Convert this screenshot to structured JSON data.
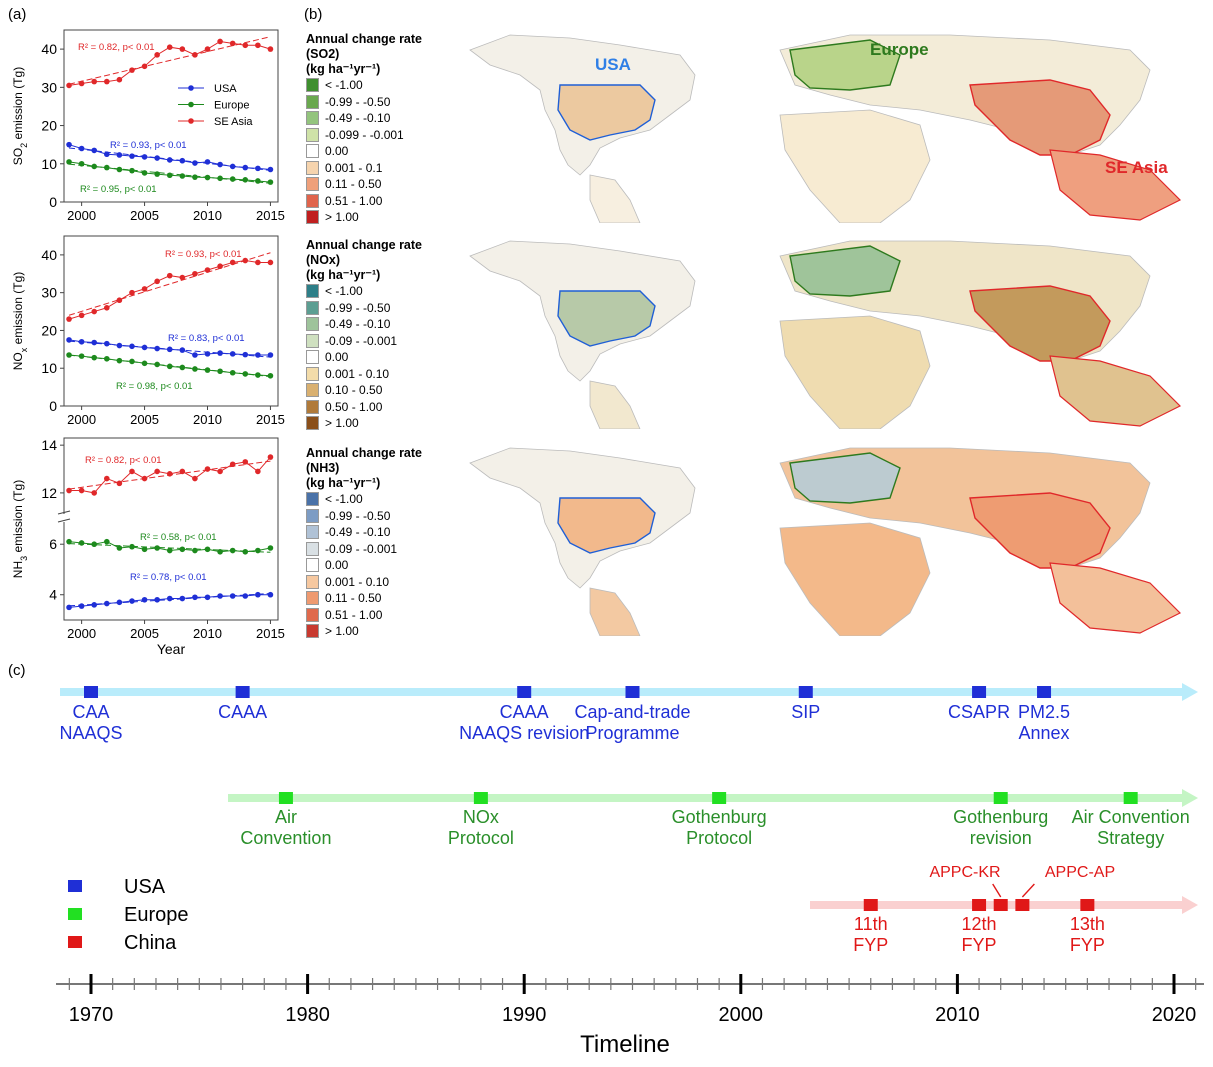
{
  "panel_labels": {
    "a": "(a)",
    "b": "(b)",
    "c": "(c)"
  },
  "colors": {
    "usa": "#1f2fd6",
    "europe": "#1d8a1d",
    "seasia": "#e0282a"
  },
  "chart_data": [
    {
      "type": "line",
      "id": "so2",
      "ylabel": "SO2 emission (Tg)",
      "xlabel": "",
      "x": [
        1999,
        2000,
        2001,
        2002,
        2003,
        2004,
        2005,
        2006,
        2007,
        2008,
        2009,
        2010,
        2011,
        2012,
        2013,
        2014,
        2015
      ],
      "xticks": [
        2000,
        2005,
        2010,
        2015
      ],
      "ylim": [
        0,
        45
      ],
      "yticks": [
        0,
        10,
        20,
        30,
        40
      ],
      "series": [
        {
          "name": "USA",
          "values": [
            15,
            14,
            13.5,
            12.5,
            12.3,
            12,
            11.8,
            11.5,
            11,
            10.8,
            10.2,
            10.5,
            9.8,
            9.3,
            9,
            8.8,
            8.5
          ]
        },
        {
          "name": "Europe",
          "values": [
            10.5,
            10,
            9.3,
            9,
            8.5,
            8.2,
            7.6,
            7.3,
            7,
            6.8,
            6.5,
            6.4,
            6.2,
            6,
            5.8,
            5.5,
            5.2
          ]
        },
        {
          "name": "SE Asia",
          "values": [
            30.5,
            31,
            31.5,
            31.5,
            32,
            34.5,
            35.5,
            38.5,
            40.5,
            40,
            38.5,
            40,
            42,
            41.5,
            41,
            41,
            40
          ]
        }
      ],
      "annotations": [
        {
          "text": "R² = 0.82, p< 0.01",
          "series": "SE Asia"
        },
        {
          "text": "R² = 0.93, p< 0.01",
          "series": "USA"
        },
        {
          "text": "R² = 0.95, p< 0.01",
          "series": "Europe"
        }
      ],
      "legend": [
        "USA",
        "Europe",
        "SE Asia"
      ]
    },
    {
      "type": "line",
      "id": "nox",
      "ylabel": "NOx emission (Tg)",
      "xlabel": "",
      "x": [
        1999,
        2000,
        2001,
        2002,
        2003,
        2004,
        2005,
        2006,
        2007,
        2008,
        2009,
        2010,
        2011,
        2012,
        2013,
        2014,
        2015
      ],
      "xticks": [
        2000,
        2005,
        2010,
        2015
      ],
      "ylim": [
        0,
        45
      ],
      "yticks": [
        0,
        10,
        20,
        30,
        40
      ],
      "series": [
        {
          "name": "USA",
          "values": [
            17.5,
            17,
            16.8,
            16.5,
            16,
            15.8,
            15.5,
            15.2,
            15,
            14.8,
            13.5,
            13.8,
            14,
            13.8,
            13.6,
            13.5,
            13.5
          ]
        },
        {
          "name": "Europe",
          "values": [
            13.5,
            13.2,
            12.8,
            12.5,
            12,
            11.8,
            11.3,
            11,
            10.5,
            10.2,
            9.8,
            9.5,
            9.2,
            8.8,
            8.5,
            8.2,
            8
          ]
        },
        {
          "name": "SE Asia",
          "values": [
            23,
            24,
            25,
            26,
            28,
            30,
            31,
            33,
            34.5,
            34,
            35,
            36,
            37,
            38,
            38.5,
            38,
            38
          ]
        }
      ],
      "annotations": [
        {
          "text": "R² = 0.93, p< 0.01",
          "series": "SE Asia"
        },
        {
          "text": "R² = 0.83, p< 0.01",
          "series": "USA"
        },
        {
          "text": "R² = 0.98, p< 0.01",
          "series": "Europe"
        }
      ]
    },
    {
      "type": "line",
      "id": "nh3",
      "ylabel": "NH3 emission (Tg)",
      "xlabel": "Year",
      "x": [
        1999,
        2000,
        2001,
        2002,
        2003,
        2004,
        2005,
        2006,
        2007,
        2008,
        2009,
        2010,
        2011,
        2012,
        2013,
        2014,
        2015
      ],
      "xticks": [
        2000,
        2005,
        2010,
        2015
      ],
      "yticks": [
        4,
        6,
        12,
        14
      ],
      "axis_break": true,
      "series": [
        {
          "name": "USA",
          "values": [
            3.5,
            3.55,
            3.6,
            3.65,
            3.7,
            3.75,
            3.8,
            3.8,
            3.85,
            3.85,
            3.9,
            3.9,
            3.95,
            3.95,
            3.95,
            4,
            4
          ]
        },
        {
          "name": "Europe",
          "values": [
            6.1,
            6.05,
            6,
            6.1,
            5.85,
            5.9,
            5.8,
            5.85,
            5.75,
            5.8,
            5.75,
            5.8,
            5.7,
            5.75,
            5.7,
            5.75,
            5.85
          ]
        },
        {
          "name": "SE Asia",
          "values": [
            12.1,
            12.1,
            12.0,
            12.6,
            12.4,
            12.9,
            12.6,
            12.9,
            12.8,
            12.9,
            12.6,
            13.0,
            12.9,
            13.2,
            13.3,
            12.9,
            13.5
          ]
        }
      ],
      "annotations": [
        {
          "text": "R² = 0.82, p< 0.01",
          "series": "SE Asia"
        },
        {
          "text": "R² = 0.58, p< 0.01",
          "series": "Europe"
        },
        {
          "text": "R² = 0.78, p< 0.01",
          "series": "USA"
        }
      ]
    }
  ],
  "maps": [
    {
      "title": "Annual change rate (SO2)",
      "unit": "(kg ha⁻¹yr⁻¹)",
      "legend": [
        "< -1.00",
        "-0.99 - -0.50",
        "-0.49 - -0.10",
        "-0.099 - -0.001",
        "0.00",
        "0.001 - 0.1",
        "0.11 - 0.50",
        "0.51 - 1.00",
        "> 1.00"
      ],
      "colors": [
        "#3f8f2f",
        "#6aa84f",
        "#93c47d",
        "#cfe2a8",
        "#ffffff",
        "#f6d4ae",
        "#efa07a",
        "#e0644c",
        "#c01f1f"
      ],
      "labels": {
        "usa": "USA",
        "europe": "Europe",
        "seasia": "SE Asia"
      }
    },
    {
      "title": "Annual change rate (NOx)",
      "unit": "(kg ha⁻¹yr⁻¹)",
      "legend": [
        "< -1.00",
        "-0.99 - -0.50",
        "-0.49 - -0.10",
        "-0.09 - -0.001",
        "0.00",
        "0.001 - 0.10",
        "0.10 - 0.50",
        "0.50 - 1.00",
        "> 1.00"
      ],
      "colors": [
        "#2e7f88",
        "#5c9e92",
        "#9ec39b",
        "#cfe0c0",
        "#ffffff",
        "#f3dcaa",
        "#d9b070",
        "#b07a3a",
        "#8a4f1a"
      ]
    },
    {
      "title": "Annual change rate (NH3)",
      "unit": "(kg ha⁻¹yr⁻¹)",
      "legend": [
        "< -1.00",
        "-0.99 - -0.50",
        "-0.49 - -0.10",
        "-0.09 - -0.001",
        "0.00",
        "0.001 - 0.10",
        "0.11 - 0.50",
        "0.51 - 1.00",
        "> 1.00"
      ],
      "colors": [
        "#4a72a8",
        "#7d9cc4",
        "#b0c2d6",
        "#d9e0e4",
        "#ffffff",
        "#f6c8a0",
        "#ef9a70",
        "#e06a4c",
        "#c83a30"
      ]
    }
  ],
  "timeline": {
    "xlabel": "Timeline",
    "ticks": [
      1970,
      1980,
      1990,
      2000,
      2010,
      2020
    ],
    "usa_events": [
      {
        "year": 1970,
        "label": "CAA\nNAAQS"
      },
      {
        "year": 1977,
        "label": "CAAA"
      },
      {
        "year": 1990,
        "label": "CAAA\nNAAQS revision"
      },
      {
        "year": 1995,
        "label": "Cap-and-trade\nProgramme"
      },
      {
        "year": 2003,
        "label": "SIP"
      },
      {
        "year": 2011,
        "label": "CSAPR"
      },
      {
        "year": 2014,
        "label": "PM2.5\nAnnex"
      }
    ],
    "europe_events": [
      {
        "year": 1979,
        "label": "Air\nConvention"
      },
      {
        "year": 1988,
        "label": "NOx\nProtocol"
      },
      {
        "year": 1999,
        "label": "Gothenburg\nProtocol"
      },
      {
        "year": 2012,
        "label": "Gothenburg\nrevision"
      },
      {
        "year": 2018,
        "label": "Air Convention\nStrategy"
      }
    ],
    "china_events": [
      {
        "year": 2006,
        "label": "11th\nFYP"
      },
      {
        "year": 2011,
        "label": "12th\nFYP"
      },
      {
        "year": 2012,
        "label": "APPC-KR"
      },
      {
        "year": 2013,
        "label": "APPC-AP"
      },
      {
        "year": 2016,
        "label": "13th\nFYP"
      }
    ],
    "legend": [
      {
        "name": "USA",
        "color": "#1f2fd6"
      },
      {
        "name": "Europe",
        "color": "#22e022"
      },
      {
        "name": "China",
        "color": "#e01818"
      }
    ]
  }
}
